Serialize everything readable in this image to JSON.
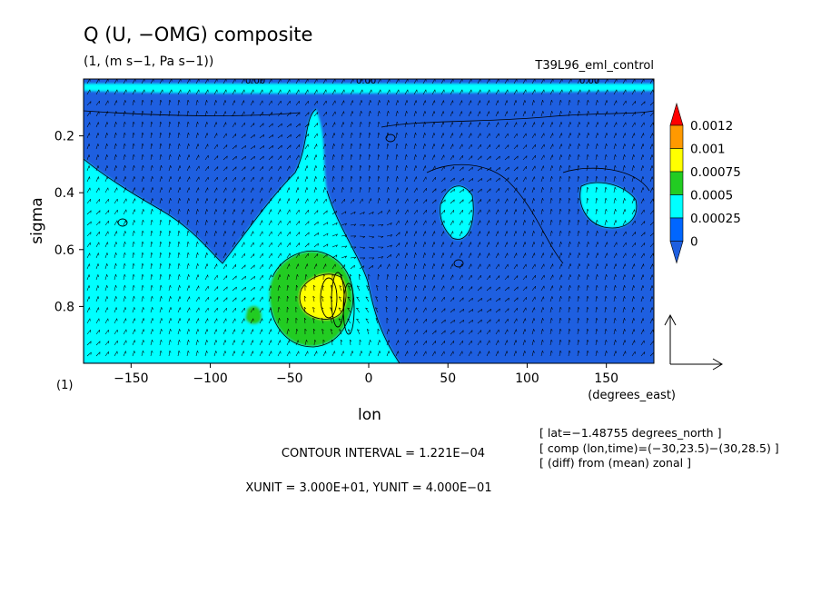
{
  "chart_data": {
    "type": "contour",
    "title": "Q (U, −OMG) composite",
    "subtitle": "(1, (m s−1, Pa s−1))",
    "run_label": "T39L96_eml_control",
    "xlabel": "lon",
    "xunit_label": "(degrees_east)",
    "ylabel": "sigma",
    "yunit_label": "(1)",
    "xlim": [
      -180,
      180
    ],
    "ylim": [
      0.0,
      1.0
    ],
    "y_inverted": true,
    "x_ticks": [
      -150,
      -100,
      -50,
      0,
      50,
      100,
      150
    ],
    "y_ticks": [
      0.2,
      0.4,
      0.6,
      0.8
    ],
    "legend": {
      "placement": "right",
      "levels": [
        "0.0012",
        "0.001",
        "0.00075",
        "0.0005",
        "0.00025",
        "0"
      ],
      "colors": [
        "#ff0000",
        "#ff9900",
        "#ffff00",
        "#22cc22",
        "#00ffff",
        "#0066ff",
        "#1e5fe0"
      ]
    },
    "contour_label": "0.00",
    "info": [
      "[ lat=−1.48755 degrees_north ]",
      "[ comp (lon,time)=(−30,23.5)−(30,28.5) ]",
      "[ (diff) from (mean) zonal ]"
    ],
    "contour_interval": "CONTOUR INTERVAL = 1.221E−04",
    "units_line": "XUNIT = 3.000E+01, YUNIT = 4.000E−01",
    "grid": false
  }
}
